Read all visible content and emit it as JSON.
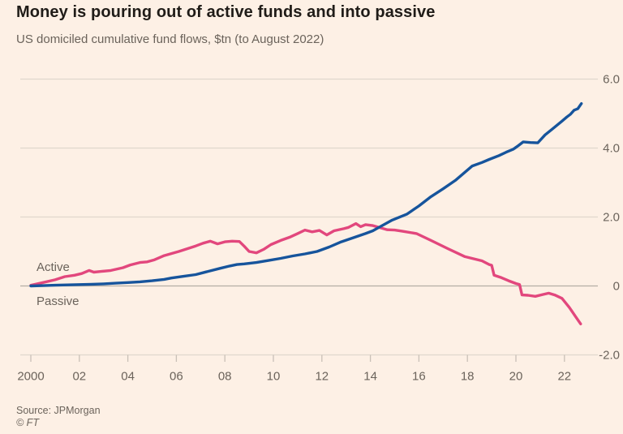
{
  "header": {
    "title": "Money is pouring out of active funds and into passive",
    "subtitle": "US domiciled cumulative fund flows, $tn (to August 2022)"
  },
  "footer": {
    "source": "Source: JPMorgan",
    "copyright": "© FT"
  },
  "colors": {
    "background": "#fdf0e5",
    "active_line": "#e2477d",
    "passive_line": "#16549c",
    "gridline": "#e0d7cd",
    "zero_line": "#b4ada5",
    "tick": "#c9c0b7",
    "axis_text": "#6b635b",
    "title_text": "#201c18"
  },
  "chart_data": {
    "type": "line",
    "title": "Money is pouring out of active funds and into passive",
    "subtitle": "US domiciled cumulative fund flows, $tn (to August 2022)",
    "ylabel": "$tn",
    "grid": "horizontal",
    "legend_position": "inline-left",
    "x_axis": {
      "tick_values": [
        2000,
        2002,
        2004,
        2006,
        2008,
        2010,
        2012,
        2014,
        2016,
        2018,
        2020,
        2022
      ],
      "tick_labels": [
        "2000",
        "02",
        "04",
        "06",
        "08",
        "10",
        "12",
        "14",
        "16",
        "18",
        "20",
        "22"
      ],
      "range": [
        2000,
        2022.67
      ]
    },
    "y_axis": {
      "tick_values": [
        6,
        4,
        2,
        0,
        -2
      ],
      "tick_labels": [
        "6.0",
        "4.0",
        "2.0",
        "0",
        "-2.0"
      ],
      "range": [
        -2,
        6
      ]
    },
    "series": [
      {
        "name": "Active",
        "color_key": "active_line",
        "points": [
          [
            2000.0,
            0.02
          ],
          [
            2000.5,
            0.1
          ],
          [
            2001.0,
            0.18
          ],
          [
            2001.4,
            0.27
          ],
          [
            2001.8,
            0.31
          ],
          [
            2002.1,
            0.36
          ],
          [
            2002.4,
            0.45
          ],
          [
            2002.6,
            0.4
          ],
          [
            2002.9,
            0.42
          ],
          [
            2003.3,
            0.45
          ],
          [
            2003.8,
            0.53
          ],
          [
            2004.1,
            0.61
          ],
          [
            2004.5,
            0.68
          ],
          [
            2004.8,
            0.7
          ],
          [
            2005.1,
            0.76
          ],
          [
            2005.5,
            0.88
          ],
          [
            2006.1,
            1.0
          ],
          [
            2006.8,
            1.16
          ],
          [
            2007.1,
            1.24
          ],
          [
            2007.4,
            1.3
          ],
          [
            2007.7,
            1.22
          ],
          [
            2008.0,
            1.28
          ],
          [
            2008.3,
            1.3
          ],
          [
            2008.6,
            1.29
          ],
          [
            2008.8,
            1.15
          ],
          [
            2009.0,
            1.0
          ],
          [
            2009.3,
            0.96
          ],
          [
            2009.6,
            1.06
          ],
          [
            2009.9,
            1.2
          ],
          [
            2010.3,
            1.32
          ],
          [
            2010.7,
            1.42
          ],
          [
            2011.0,
            1.52
          ],
          [
            2011.3,
            1.62
          ],
          [
            2011.6,
            1.57
          ],
          [
            2011.9,
            1.61
          ],
          [
            2012.2,
            1.48
          ],
          [
            2012.5,
            1.6
          ],
          [
            2012.9,
            1.66
          ],
          [
            2013.1,
            1.7
          ],
          [
            2013.4,
            1.81
          ],
          [
            2013.6,
            1.72
          ],
          [
            2013.8,
            1.78
          ],
          [
            2014.1,
            1.75
          ],
          [
            2014.35,
            1.7
          ],
          [
            2014.7,
            1.63
          ],
          [
            2015.0,
            1.62
          ],
          [
            2015.3,
            1.59
          ],
          [
            2015.9,
            1.52
          ],
          [
            2016.5,
            1.32
          ],
          [
            2017.2,
            1.08
          ],
          [
            2017.9,
            0.85
          ],
          [
            2018.6,
            0.73
          ],
          [
            2018.9,
            0.62
          ],
          [
            2019.0,
            0.6
          ],
          [
            2019.1,
            0.31
          ],
          [
            2019.4,
            0.24
          ],
          [
            2019.7,
            0.15
          ],
          [
            2020.0,
            0.07
          ],
          [
            2020.15,
            0.04
          ],
          [
            2020.25,
            -0.26
          ],
          [
            2020.5,
            -0.27
          ],
          [
            2020.8,
            -0.3
          ],
          [
            2021.1,
            -0.25
          ],
          [
            2021.35,
            -0.21
          ],
          [
            2021.6,
            -0.26
          ],
          [
            2021.9,
            -0.36
          ],
          [
            2022.2,
            -0.62
          ],
          [
            2022.45,
            -0.88
          ],
          [
            2022.67,
            -1.1
          ]
        ]
      },
      {
        "name": "Passive",
        "color_key": "passive_line",
        "points": [
          [
            2000.0,
            0.0
          ],
          [
            2000.5,
            0.01
          ],
          [
            2001.0,
            0.02
          ],
          [
            2001.5,
            0.03
          ],
          [
            2002.0,
            0.04
          ],
          [
            2002.5,
            0.05
          ],
          [
            2003.0,
            0.06
          ],
          [
            2003.5,
            0.08
          ],
          [
            2004.0,
            0.1
          ],
          [
            2004.5,
            0.12
          ],
          [
            2005.0,
            0.15
          ],
          [
            2005.5,
            0.19
          ],
          [
            2005.8,
            0.23
          ],
          [
            2006.3,
            0.28
          ],
          [
            2006.8,
            0.33
          ],
          [
            2007.3,
            0.42
          ],
          [
            2007.8,
            0.51
          ],
          [
            2008.2,
            0.58
          ],
          [
            2008.5,
            0.62
          ],
          [
            2008.8,
            0.64
          ],
          [
            2009.3,
            0.68
          ],
          [
            2009.8,
            0.74
          ],
          [
            2010.3,
            0.8
          ],
          [
            2010.8,
            0.87
          ],
          [
            2011.3,
            0.93
          ],
          [
            2011.8,
            1.0
          ],
          [
            2012.3,
            1.13
          ],
          [
            2012.8,
            1.28
          ],
          [
            2013.3,
            1.4
          ],
          [
            2013.8,
            1.52
          ],
          [
            2014.1,
            1.6
          ],
          [
            2014.35,
            1.7
          ],
          [
            2014.9,
            1.91
          ],
          [
            2015.5,
            2.08
          ],
          [
            2016.0,
            2.32
          ],
          [
            2016.5,
            2.59
          ],
          [
            2017.0,
            2.82
          ],
          [
            2017.5,
            3.06
          ],
          [
            2018.2,
            3.48
          ],
          [
            2018.6,
            3.58
          ],
          [
            2018.9,
            3.67
          ],
          [
            2019.3,
            3.78
          ],
          [
            2019.6,
            3.88
          ],
          [
            2019.9,
            3.97
          ],
          [
            2020.1,
            4.07
          ],
          [
            2020.3,
            4.18
          ],
          [
            2020.6,
            4.16
          ],
          [
            2020.9,
            4.15
          ],
          [
            2021.2,
            4.38
          ],
          [
            2021.5,
            4.55
          ],
          [
            2021.9,
            4.78
          ],
          [
            2022.1,
            4.9
          ],
          [
            2022.25,
            4.98
          ],
          [
            2022.4,
            5.1
          ],
          [
            2022.55,
            5.14
          ],
          [
            2022.7,
            5.29
          ]
        ]
      }
    ]
  }
}
